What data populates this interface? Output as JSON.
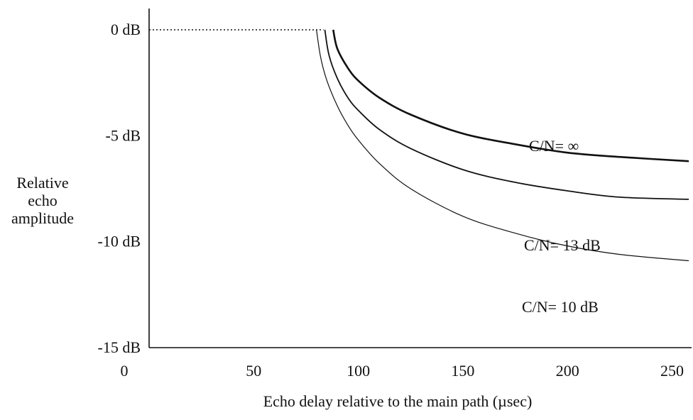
{
  "chart_data": {
    "type": "line",
    "xlabel": "Echo delay relative to the main path (µsec)",
    "ylabel": [
      "Relative",
      "echo",
      "amplitude"
    ],
    "xlim": [
      0,
      260
    ],
    "ylim": [
      -15,
      0
    ],
    "x_ticks": [
      "0",
      "50",
      "100",
      "150",
      "200",
      "250"
    ],
    "x_tick_values": [
      0,
      50,
      100,
      150,
      200,
      250
    ],
    "y_ticks": [
      "0 dB",
      "-5 dB",
      "-10 dB",
      "-15 dB"
    ],
    "y_tick_values": [
      0,
      -5,
      -10,
      -15
    ],
    "reference_line": {
      "style": "dotted",
      "y": 0,
      "x": [
        0,
        80
      ]
    },
    "series": [
      {
        "name": "C/N= ∞",
        "x": [
          88,
          90,
          95,
          100,
          110,
          125,
          150,
          175,
          200,
          225,
          258
        ],
        "values": [
          0,
          -0.9,
          -1.8,
          -2.4,
          -3.2,
          -4.0,
          -4.9,
          -5.4,
          -5.8,
          -6.0,
          -6.2
        ]
      },
      {
        "name": "C/N= 13 dB",
        "x": [
          84,
          86,
          90,
          95,
          100,
          110,
          125,
          150,
          175,
          200,
          225,
          258
        ],
        "values": [
          0,
          -1.2,
          -2.3,
          -3.2,
          -3.8,
          -4.7,
          -5.6,
          -6.6,
          -7.2,
          -7.6,
          -7.9,
          -8.0
        ]
      },
      {
        "name": "C/N= 10 dB",
        "x": [
          80,
          82,
          85,
          90,
          95,
          100,
          110,
          125,
          150,
          175,
          200,
          225,
          258
        ],
        "values": [
          0,
          -1.3,
          -2.4,
          -3.6,
          -4.5,
          -5.2,
          -6.3,
          -7.5,
          -8.8,
          -9.6,
          -10.2,
          -10.6,
          -10.9
        ]
      }
    ],
    "legend": "labels placed next to curves at right",
    "grid": false
  }
}
